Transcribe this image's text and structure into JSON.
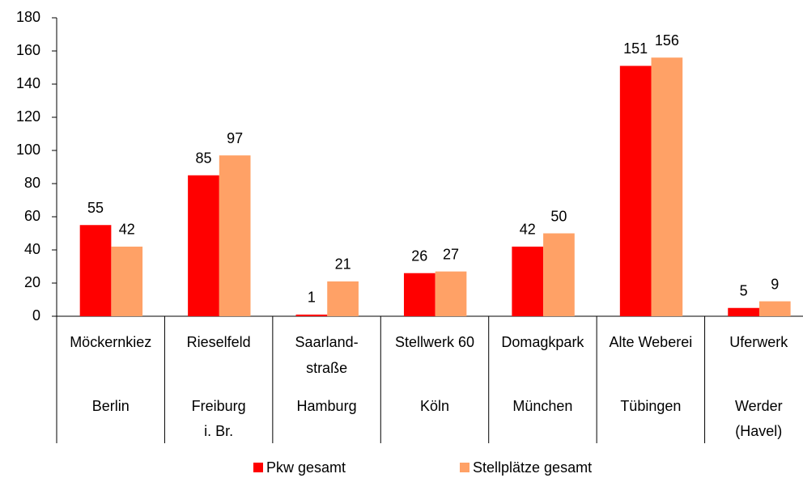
{
  "chart_data": {
    "type": "bar",
    "categories": [
      [
        "Möckernkiez"
      ],
      [
        "Rieselfeld"
      ],
      [
        "Saarland-",
        "straße"
      ],
      [
        "Stellwerk 60"
      ],
      [
        "Domagkpark"
      ],
      [
        "Alte Weberei"
      ],
      [
        "Uferwerk"
      ]
    ],
    "groups": [
      [
        "Berlin"
      ],
      [
        "Freiburg",
        "i. Br."
      ],
      [
        "Hamburg"
      ],
      [
        "Köln"
      ],
      [
        "München"
      ],
      [
        "Tübingen"
      ],
      [
        "Werder",
        "(Havel)"
      ]
    ],
    "series": [
      {
        "name": "Pkw gesamt",
        "color": "#ff0000",
        "values": [
          55,
          85,
          1,
          26,
          42,
          151,
          5
        ]
      },
      {
        "name": "Stellplätze gesamt",
        "color": "#ffa166",
        "values": [
          42,
          97,
          21,
          27,
          50,
          156,
          9
        ]
      }
    ],
    "ylim": [
      0,
      180
    ],
    "yticks": [
      0,
      20,
      40,
      60,
      80,
      100,
      120,
      140,
      160,
      180
    ],
    "grid": false,
    "legend": "bottom"
  }
}
